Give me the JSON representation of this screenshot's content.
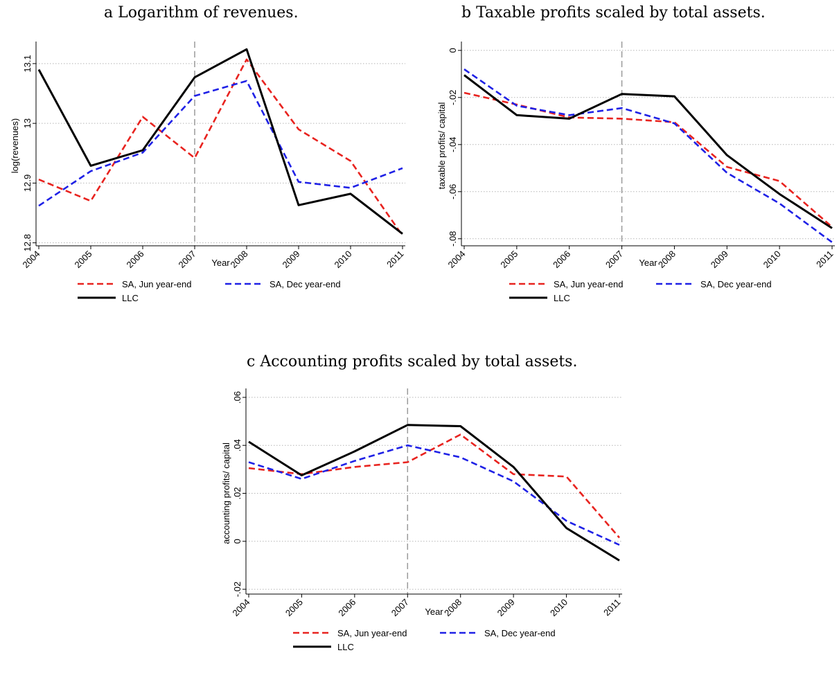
{
  "colors": {
    "jun": "#e8231f",
    "dec": "#1f21e6",
    "llc": "#000000",
    "grid": "#b5b5b5",
    "vline": "#9a9a9a"
  },
  "chart_data": [
    {
      "type": "line",
      "title": "a Logarithm of revenues.",
      "xlabel": "Year",
      "ylabel": "log(revenues)",
      "x": [
        2004,
        2005,
        2006,
        2007,
        2008,
        2009,
        2010,
        2011
      ],
      "x_ticks": [
        "2004",
        "2005",
        "2006",
        "2007",
        "2008",
        "2009",
        "2010",
        "2011"
      ],
      "y_ticks": [
        12.8,
        12.9,
        13,
        13.1
      ],
      "y_tick_labels": [
        "12.8",
        "12.9",
        "13",
        "13.1"
      ],
      "ylim": [
        12.795,
        13.13
      ],
      "vline": 2007,
      "grid": true,
      "legend": "bottom",
      "series": [
        {
          "name": "SA, Jun year-end",
          "style": "dashed",
          "color_key": "jun",
          "values": [
            12.906,
            12.87,
            13.011,
            12.942,
            13.107,
            12.99,
            12.937,
            12.812
          ]
        },
        {
          "name": "SA, Dec year-end",
          "style": "dashed",
          "color_key": "dec",
          "values": [
            12.862,
            12.92,
            12.951,
            13.046,
            13.071,
            12.902,
            12.892,
            12.925
          ]
        },
        {
          "name": "LLC",
          "style": "solid",
          "color_key": "llc",
          "values": [
            13.09,
            12.929,
            12.955,
            13.077,
            13.124,
            12.863,
            12.882,
            12.815
          ]
        }
      ]
    },
    {
      "type": "line",
      "title": "b Taxable profits scaled by total assets.",
      "xlabel": "Year",
      "ylabel": "taxable profits/ capital",
      "x": [
        2004,
        2005,
        2006,
        2007,
        2008,
        2009,
        2010,
        2011
      ],
      "x_ticks": [
        "2004",
        "2005",
        "2006",
        "2007",
        "2008",
        "2009",
        "2010",
        "2011"
      ],
      "y_ticks": [
        0,
        -0.02,
        -0.04,
        -0.06,
        -0.08
      ],
      "y_tick_labels": [
        "0",
        "-.02",
        "-.04",
        "-.06",
        "-.08"
      ],
      "ylim": [
        -0.083,
        0.002
      ],
      "vline": 2007,
      "grid": true,
      "legend": "bottom",
      "series": [
        {
          "name": "SA, Jun year-end",
          "style": "dashed",
          "color_key": "jun",
          "values": [
            -0.018,
            -0.023,
            -0.0285,
            -0.029,
            -0.0305,
            -0.0495,
            -0.0555,
            -0.075
          ]
        },
        {
          "name": "SA, Dec year-end",
          "style": "dashed",
          "color_key": "dec",
          "values": [
            -0.008,
            -0.0235,
            -0.0275,
            -0.0245,
            -0.031,
            -0.052,
            -0.065,
            -0.0815
          ]
        },
        {
          "name": "LLC",
          "style": "solid",
          "color_key": "llc",
          "values": [
            -0.0105,
            -0.0275,
            -0.029,
            -0.0185,
            -0.0195,
            -0.0445,
            -0.061,
            -0.0755
          ]
        }
      ]
    },
    {
      "type": "line",
      "title": "c Accounting profits scaled by total assets.",
      "xlabel": "Year",
      "ylabel": "accounting profits/ capital",
      "x": [
        2004,
        2005,
        2006,
        2007,
        2008,
        2009,
        2010,
        2011
      ],
      "x_ticks": [
        "2004",
        "2005",
        "2006",
        "2007",
        "2008",
        "2009",
        "2010",
        "2011"
      ],
      "y_ticks": [
        -0.02,
        0,
        0.02,
        0.04,
        0.06
      ],
      "y_tick_labels": [
        "-.02",
        "0",
        ".02",
        ".04",
        ".06"
      ],
      "ylim": [
        -0.022,
        0.062
      ],
      "vline": 2007,
      "grid": true,
      "legend": "bottom",
      "series": [
        {
          "name": "SA, Jun year-end",
          "style": "dashed",
          "color_key": "jun",
          "values": [
            0.0305,
            0.028,
            0.031,
            0.033,
            0.0445,
            0.028,
            0.027,
            0.0015
          ]
        },
        {
          "name": "SA, Dec year-end",
          "style": "dashed",
          "color_key": "dec",
          "values": [
            0.033,
            0.026,
            0.0335,
            0.04,
            0.035,
            0.025,
            0.0085,
            -0.0015
          ]
        },
        {
          "name": "LLC",
          "style": "solid",
          "color_key": "llc",
          "values": [
            0.0415,
            0.0275,
            0.0375,
            0.0485,
            0.048,
            0.031,
            0.0055,
            -0.008
          ]
        }
      ]
    }
  ]
}
